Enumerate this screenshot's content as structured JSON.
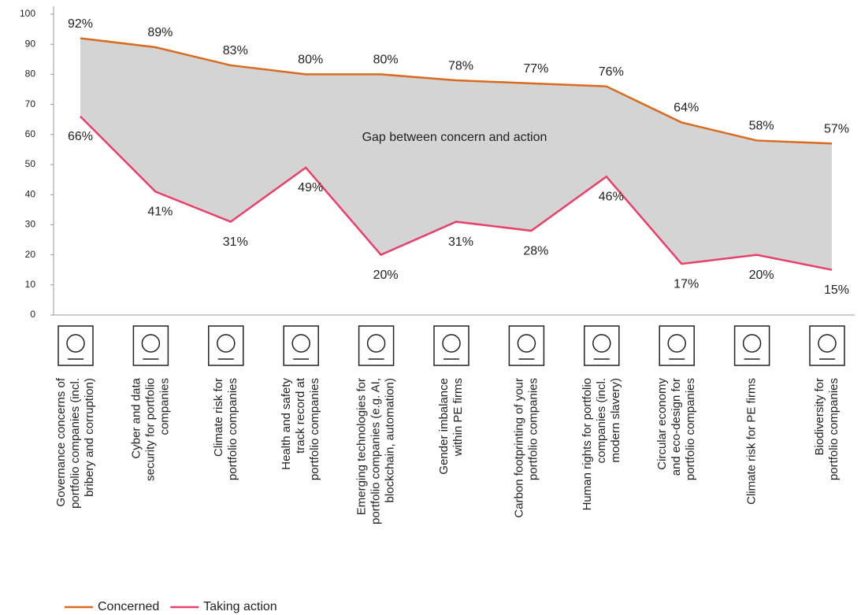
{
  "chart_data": {
    "type": "line",
    "annotation": "Gap between concern and action",
    "categories": [
      [
        "Governance concerns of",
        "portfolio companies (incl.",
        "bribery and corruption)"
      ],
      [
        "Cyber and data",
        "security for portfolio",
        "companies"
      ],
      [
        "Climate risk for",
        "portfolio companies"
      ],
      [
        "Health and safety",
        "track record at",
        "portfolio companies"
      ],
      [
        "Emerging technologies for",
        "portfolio companies (e.g. AI,",
        "blockchain, automation)"
      ],
      [
        "Gender imbalance",
        "within PE firms"
      ],
      [
        "Carbon footprinting of your",
        "portfolio companies"
      ],
      [
        "Human rights for portfolio",
        "companies (incl.",
        "modern slavery)"
      ],
      [
        "Circular economy",
        "and eco-design for",
        "portfolio companies"
      ],
      [
        "Climate risk for PE firms"
      ],
      [
        "Biodiversity for",
        "portfolio companies"
      ]
    ],
    "series": [
      {
        "name": "Concerned",
        "color": "#d96a1e",
        "values": [
          92,
          89,
          83,
          80,
          80,
          78,
          77,
          76,
          64,
          58,
          57
        ],
        "value_labels": [
          "92%",
          "89%",
          "83%",
          "80%",
          "80%",
          "78%",
          "77%",
          "76%",
          "64%",
          "58%",
          "57%"
        ]
      },
      {
        "name": "Taking action",
        "color": "#e8406a",
        "values": [
          66,
          41,
          31,
          49,
          20,
          31,
          28,
          46,
          17,
          20,
          15
        ],
        "value_labels": [
          "66%",
          "41%",
          "31%",
          "49%",
          "20%",
          "31%",
          "28%",
          "46%",
          "17%",
          "20%",
          "15%"
        ]
      }
    ],
    "area_color": "#d4d4d4",
    "ylim": [
      0,
      100
    ],
    "yticks": [
      0,
      10,
      20,
      30,
      40,
      50,
      60,
      70,
      80,
      90,
      100
    ],
    "grid": false
  }
}
